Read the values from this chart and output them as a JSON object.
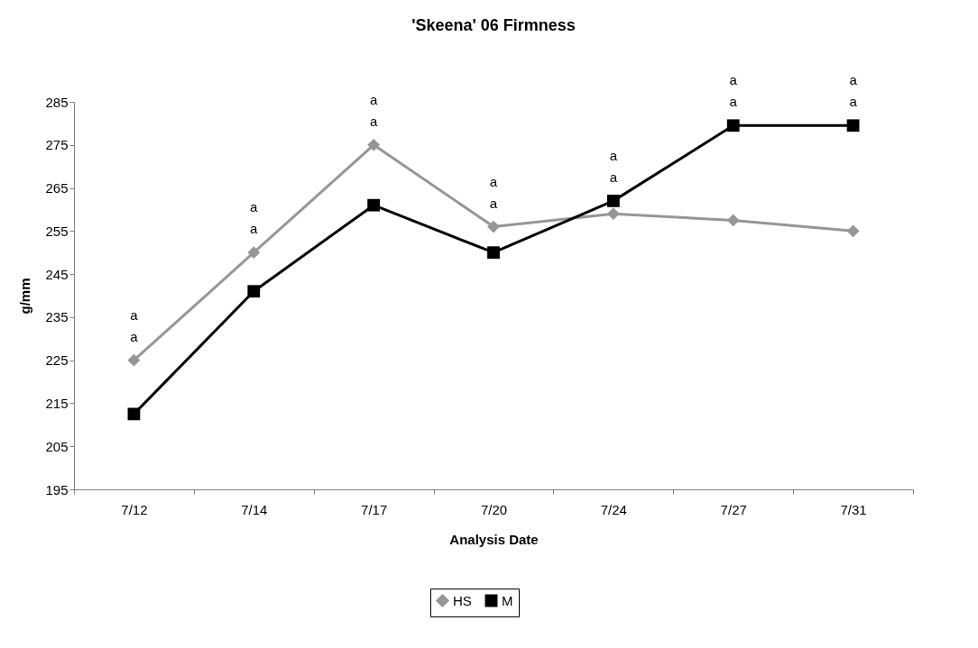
{
  "chart_data": {
    "type": "line",
    "title": "'Skeena' 06 Firmness",
    "xlabel": "Analysis Date",
    "ylabel": "g/mm",
    "categories": [
      "7/12",
      "7/14",
      "7/17",
      "7/20",
      "7/24",
      "7/27",
      "7/31"
    ],
    "series": [
      {
        "name": "HS",
        "color": "#969696",
        "marker": "diamond",
        "values": [
          225,
          250,
          275,
          256,
          259,
          257.5,
          255
        ]
      },
      {
        "name": "M",
        "color": "#000000",
        "marker": "square",
        "values": [
          212.5,
          241,
          261,
          250,
          262,
          279.5,
          279.5
        ]
      }
    ],
    "ylim": [
      195,
      285
    ],
    "yticks": [
      195,
      205,
      215,
      225,
      235,
      245,
      255,
      265,
      275,
      285
    ],
    "grid": false,
    "legend": "bottom",
    "line_style": "solid",
    "annotations": [
      "a",
      "a",
      "a",
      "a",
      "a",
      "a",
      "a",
      "a",
      "a",
      "a",
      "a",
      "a",
      "a",
      "a"
    ]
  }
}
